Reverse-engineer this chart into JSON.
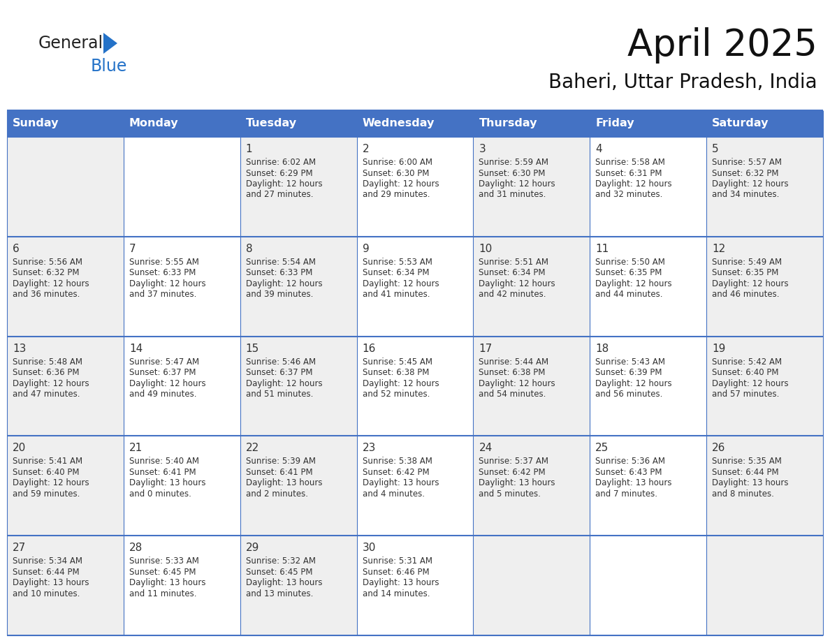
{
  "title": "April 2025",
  "subtitle": "Baheri, Uttar Pradesh, India",
  "days_of_week": [
    "Sunday",
    "Monday",
    "Tuesday",
    "Wednesday",
    "Thursday",
    "Friday",
    "Saturday"
  ],
  "header_bg": "#4472C4",
  "header_text": "#FFFFFF",
  "cell_bg_even": "#EFEFEF",
  "cell_bg_odd": "#FFFFFF",
  "border_color": "#4472C4",
  "text_color": "#333333",
  "calendar_data": [
    [
      {
        "day": "",
        "sunrise": "",
        "sunset": "",
        "daylight": ""
      },
      {
        "day": "",
        "sunrise": "",
        "sunset": "",
        "daylight": ""
      },
      {
        "day": "1",
        "sunrise": "6:02 AM",
        "sunset": "6:29 PM",
        "daylight_l1": "12 hours",
        "daylight_l2": "and 27 minutes."
      },
      {
        "day": "2",
        "sunrise": "6:00 AM",
        "sunset": "6:30 PM",
        "daylight_l1": "12 hours",
        "daylight_l2": "and 29 minutes."
      },
      {
        "day": "3",
        "sunrise": "5:59 AM",
        "sunset": "6:30 PM",
        "daylight_l1": "12 hours",
        "daylight_l2": "and 31 minutes."
      },
      {
        "day": "4",
        "sunrise": "5:58 AM",
        "sunset": "6:31 PM",
        "daylight_l1": "12 hours",
        "daylight_l2": "and 32 minutes."
      },
      {
        "day": "5",
        "sunrise": "5:57 AM",
        "sunset": "6:32 PM",
        "daylight_l1": "12 hours",
        "daylight_l2": "and 34 minutes."
      }
    ],
    [
      {
        "day": "6",
        "sunrise": "5:56 AM",
        "sunset": "6:32 PM",
        "daylight_l1": "12 hours",
        "daylight_l2": "and 36 minutes."
      },
      {
        "day": "7",
        "sunrise": "5:55 AM",
        "sunset": "6:33 PM",
        "daylight_l1": "12 hours",
        "daylight_l2": "and 37 minutes."
      },
      {
        "day": "8",
        "sunrise": "5:54 AM",
        "sunset": "6:33 PM",
        "daylight_l1": "12 hours",
        "daylight_l2": "and 39 minutes."
      },
      {
        "day": "9",
        "sunrise": "5:53 AM",
        "sunset": "6:34 PM",
        "daylight_l1": "12 hours",
        "daylight_l2": "and 41 minutes."
      },
      {
        "day": "10",
        "sunrise": "5:51 AM",
        "sunset": "6:34 PM",
        "daylight_l1": "12 hours",
        "daylight_l2": "and 42 minutes."
      },
      {
        "day": "11",
        "sunrise": "5:50 AM",
        "sunset": "6:35 PM",
        "daylight_l1": "12 hours",
        "daylight_l2": "and 44 minutes."
      },
      {
        "day": "12",
        "sunrise": "5:49 AM",
        "sunset": "6:35 PM",
        "daylight_l1": "12 hours",
        "daylight_l2": "and 46 minutes."
      }
    ],
    [
      {
        "day": "13",
        "sunrise": "5:48 AM",
        "sunset": "6:36 PM",
        "daylight_l1": "12 hours",
        "daylight_l2": "and 47 minutes."
      },
      {
        "day": "14",
        "sunrise": "5:47 AM",
        "sunset": "6:37 PM",
        "daylight_l1": "12 hours",
        "daylight_l2": "and 49 minutes."
      },
      {
        "day": "15",
        "sunrise": "5:46 AM",
        "sunset": "6:37 PM",
        "daylight_l1": "12 hours",
        "daylight_l2": "and 51 minutes."
      },
      {
        "day": "16",
        "sunrise": "5:45 AM",
        "sunset": "6:38 PM",
        "daylight_l1": "12 hours",
        "daylight_l2": "and 52 minutes."
      },
      {
        "day": "17",
        "sunrise": "5:44 AM",
        "sunset": "6:38 PM",
        "daylight_l1": "12 hours",
        "daylight_l2": "and 54 minutes."
      },
      {
        "day": "18",
        "sunrise": "5:43 AM",
        "sunset": "6:39 PM",
        "daylight_l1": "12 hours",
        "daylight_l2": "and 56 minutes."
      },
      {
        "day": "19",
        "sunrise": "5:42 AM",
        "sunset": "6:40 PM",
        "daylight_l1": "12 hours",
        "daylight_l2": "and 57 minutes."
      }
    ],
    [
      {
        "day": "20",
        "sunrise": "5:41 AM",
        "sunset": "6:40 PM",
        "daylight_l1": "12 hours",
        "daylight_l2": "and 59 minutes."
      },
      {
        "day": "21",
        "sunrise": "5:40 AM",
        "sunset": "6:41 PM",
        "daylight_l1": "13 hours",
        "daylight_l2": "and 0 minutes."
      },
      {
        "day": "22",
        "sunrise": "5:39 AM",
        "sunset": "6:41 PM",
        "daylight_l1": "13 hours",
        "daylight_l2": "and 2 minutes."
      },
      {
        "day": "23",
        "sunrise": "5:38 AM",
        "sunset": "6:42 PM",
        "daylight_l1": "13 hours",
        "daylight_l2": "and 4 minutes."
      },
      {
        "day": "24",
        "sunrise": "5:37 AM",
        "sunset": "6:42 PM",
        "daylight_l1": "13 hours",
        "daylight_l2": "and 5 minutes."
      },
      {
        "day": "25",
        "sunrise": "5:36 AM",
        "sunset": "6:43 PM",
        "daylight_l1": "13 hours",
        "daylight_l2": "and 7 minutes."
      },
      {
        "day": "26",
        "sunrise": "5:35 AM",
        "sunset": "6:44 PM",
        "daylight_l1": "13 hours",
        "daylight_l2": "and 8 minutes."
      }
    ],
    [
      {
        "day": "27",
        "sunrise": "5:34 AM",
        "sunset": "6:44 PM",
        "daylight_l1": "13 hours",
        "daylight_l2": "and 10 minutes."
      },
      {
        "day": "28",
        "sunrise": "5:33 AM",
        "sunset": "6:45 PM",
        "daylight_l1": "13 hours",
        "daylight_l2": "and 11 minutes."
      },
      {
        "day": "29",
        "sunrise": "5:32 AM",
        "sunset": "6:45 PM",
        "daylight_l1": "13 hours",
        "daylight_l2": "and 13 minutes."
      },
      {
        "day": "30",
        "sunrise": "5:31 AM",
        "sunset": "6:46 PM",
        "daylight_l1": "13 hours",
        "daylight_l2": "and 14 minutes."
      },
      {
        "day": "",
        "sunrise": "",
        "sunset": "",
        "daylight_l1": "",
        "daylight_l2": ""
      },
      {
        "day": "",
        "sunrise": "",
        "sunset": "",
        "daylight_l1": "",
        "daylight_l2": ""
      },
      {
        "day": "",
        "sunrise": "",
        "sunset": "",
        "daylight_l1": "",
        "daylight_l2": ""
      }
    ]
  ]
}
